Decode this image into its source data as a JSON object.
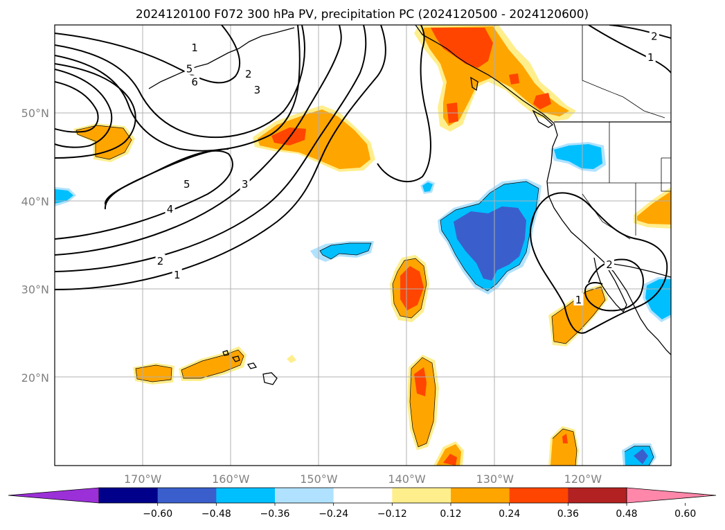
{
  "chart_data": {
    "type": "map",
    "title": "2024120100 F072 300 hPa PV, precipitation PC (2024120500 - 2024120600)",
    "lon_range": [
      -180,
      -110
    ],
    "lat_range": [
      10,
      60
    ],
    "lon_ticks": [
      {
        "value": -170,
        "label": "170°W"
      },
      {
        "value": -160,
        "label": "160°W"
      },
      {
        "value": -150,
        "label": "150°W"
      },
      {
        "value": -140,
        "label": "140°W"
      },
      {
        "value": -130,
        "label": "130°W"
      },
      {
        "value": -120,
        "label": "120°W"
      }
    ],
    "lat_ticks": [
      {
        "value": 20,
        "label": "20°N"
      },
      {
        "value": 30,
        "label": "30°N"
      },
      {
        "value": 40,
        "label": "40°N"
      },
      {
        "value": 50,
        "label": "50°N"
      }
    ],
    "grid": true,
    "colorbar": {
      "orientation": "horizontal",
      "extend": "both",
      "boundaries": [
        -0.6,
        -0.48,
        -0.36,
        -0.24,
        -0.12,
        0.12,
        0.24,
        0.36,
        0.48,
        0.6
      ],
      "labels": [
        "−0.60",
        "−0.48",
        "−0.36",
        "−0.24",
        "−0.12",
        "0.12",
        "0.24",
        "0.36",
        "0.48",
        "0.60"
      ],
      "colors": [
        "#9b30d8",
        "#00008b",
        "#3a5fcd",
        "#00bfff",
        "#b0e2ff",
        "#ffffff",
        "#ffee8c",
        "#ffa500",
        "#ff4500",
        "#b22222",
        "#ff88aa"
      ]
    },
    "pv_contour_labels": [
      {
        "text": "1",
        "lon": -164.1,
        "lat": 57.4
      },
      {
        "text": "2",
        "lon": -158.0,
        "lat": 54.4
      },
      {
        "text": "3",
        "lon": -157.0,
        "lat": 52.6
      },
      {
        "text": "5",
        "lon": -164.7,
        "lat": 55.0
      },
      {
        "text": "6",
        "lon": -164.1,
        "lat": 53.5
      },
      {
        "text": "5",
        "lon": -165.0,
        "lat": 41.9
      },
      {
        "text": "4",
        "lon": -166.9,
        "lat": 39.1
      },
      {
        "text": "3",
        "lon": -158.4,
        "lat": 41.9
      },
      {
        "text": "2",
        "lon": -168.0,
        "lat": 33.2
      },
      {
        "text": "1",
        "lon": -166.1,
        "lat": 31.6
      },
      {
        "text": "2",
        "lon": -111.9,
        "lat": 58.7
      },
      {
        "text": "1",
        "lon": -112.3,
        "lat": 56.3
      },
      {
        "text": "1",
        "lon": -120.5,
        "lat": 28.8
      },
      {
        "text": "2",
        "lon": -117.0,
        "lat": 32.8
      }
    ]
  }
}
